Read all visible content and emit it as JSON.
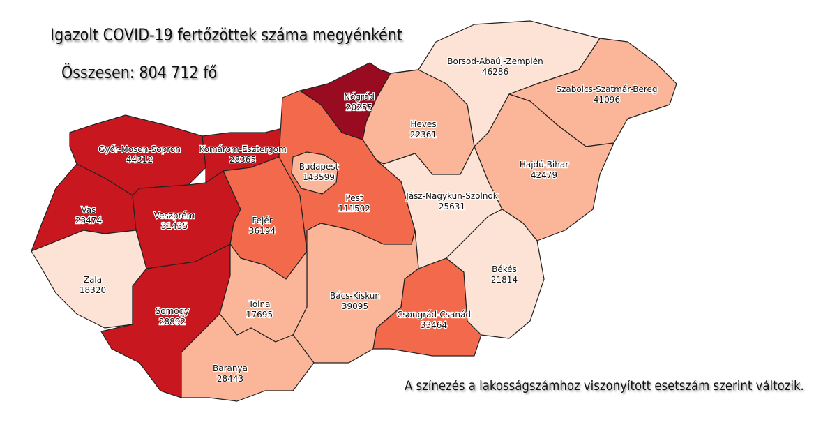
{
  "title": "Igazolt COVID-19 fertőzöttek száma megyénként",
  "total": "Összesen: 804 712 fő",
  "note": "A színezés a lakosságszámhoz viszonyított esetszám szerint változik.",
  "colors": {
    "level1": "#fde2d6",
    "level2": "#fbb598",
    "level3": "#f26a4b",
    "level4": "#c8171e",
    "level5": "#980b20"
  },
  "counties": [
    {
      "id": "gyor",
      "name": "Győr-Moson-Sopron",
      "value": "44312",
      "level": "level4"
    },
    {
      "id": "komarom",
      "name": "Komárom-Esztergom",
      "value": "28365",
      "level": "level4"
    },
    {
      "id": "vas",
      "name": "Vas",
      "value": "23474",
      "level": "level4"
    },
    {
      "id": "veszprem",
      "name": "Veszprém",
      "value": "31435",
      "level": "level4"
    },
    {
      "id": "zala",
      "name": "Zala",
      "value": "18320",
      "level": "level1"
    },
    {
      "id": "somogy",
      "name": "Somogy",
      "value": "28892",
      "level": "level4"
    },
    {
      "id": "fejer",
      "name": "Fejér",
      "value": "36194",
      "level": "level3"
    },
    {
      "id": "pest",
      "name": "Pest",
      "value": "111502",
      "level": "level3"
    },
    {
      "id": "budapest",
      "name": "Budapest",
      "value": "143599",
      "level": "level2"
    },
    {
      "id": "nograd",
      "name": "Nógrád",
      "value": "20255",
      "level": "level5"
    },
    {
      "id": "heves",
      "name": "Heves",
      "value": "22361",
      "level": "level2"
    },
    {
      "id": "borsod",
      "name": "Borsod-Abaúj-Zemplén",
      "value": "46286",
      "level": "level1"
    },
    {
      "id": "szabolcs",
      "name": "Szabolcs-Szatmár-Bereg",
      "value": "41096",
      "level": "level2"
    },
    {
      "id": "hajdu",
      "name": "Hajdú-Bihar",
      "value": "42479",
      "level": "level2"
    },
    {
      "id": "jnsz",
      "name": "Jász-Nagykun-Szolnok",
      "value": "25631",
      "level": "level1"
    },
    {
      "id": "bacs",
      "name": "Bács-Kiskun",
      "value": "39095",
      "level": "level2"
    },
    {
      "id": "csongrad",
      "name": "Csongrád-Csanád",
      "value": "33464",
      "level": "level3"
    },
    {
      "id": "bekes",
      "name": "Békés",
      "value": "21814",
      "level": "level1"
    },
    {
      "id": "tolna",
      "name": "Tolna",
      "value": "17695",
      "level": "level2"
    },
    {
      "id": "baranya",
      "name": "Baranya",
      "value": "28443",
      "level": "level2"
    }
  ]
}
